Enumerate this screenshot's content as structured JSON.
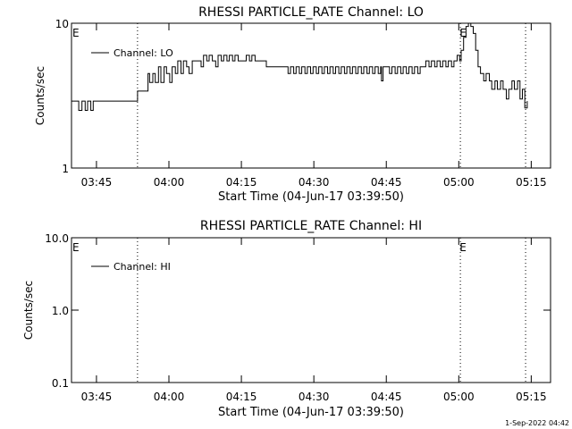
{
  "footer": {
    "timestamp": "1-Sep-2022 04:42"
  },
  "chart_data": [
    {
      "type": "line",
      "title": "RHESSI PARTICLE_RATE Channel: LO",
      "xlabel": "Start Time (04-Jun-17 03:39:50)",
      "ylabel": "Counts/sec",
      "y_scale": "log",
      "xlim": [
        "03:39:50",
        "05:19:00"
      ],
      "ylim": [
        1,
        10
      ],
      "x_ticks": [
        "03:45",
        "04:00",
        "04:15",
        "04:30",
        "04:45",
        "05:00",
        "05:15"
      ],
      "y_ticks": [
        "1",
        "10"
      ],
      "grid": false,
      "legend_position": "top-left",
      "event_flags": [
        {
          "time": "03:39:50",
          "label": "E"
        },
        {
          "time": "05:00:00",
          "label": "E"
        }
      ],
      "vertical_markers": [
        "03:53:30",
        "05:00:20",
        "05:13:50"
      ],
      "series": [
        {
          "name": "Channel: LO",
          "time": [
            "03:39:50",
            "03:40:50",
            "03:41:20",
            "03:42:00",
            "03:42:40",
            "03:43:10",
            "03:43:50",
            "03:44:20",
            "03:45:00",
            "03:53:30",
            "03:55:40",
            "03:56:00",
            "03:56:40",
            "03:57:10",
            "03:57:50",
            "03:58:20",
            "03:59:00",
            "03:59:30",
            "04:00:10",
            "04:00:40",
            "04:01:20",
            "04:01:50",
            "04:02:30",
            "04:03:00",
            "04:03:40",
            "04:04:10",
            "04:04:50",
            "04:05:20",
            "04:06:00",
            "04:06:40",
            "04:07:10",
            "04:07:50",
            "04:08:20",
            "04:09:00",
            "04:09:40",
            "04:10:10",
            "04:10:50",
            "04:11:20",
            "04:12:00",
            "04:12:30",
            "04:13:10",
            "04:13:40",
            "04:14:20",
            "04:14:50",
            "04:15:30",
            "04:16:00",
            "04:16:40",
            "04:17:10",
            "04:17:50",
            "04:18:20",
            "04:19:00",
            "04:19:30",
            "04:20:10",
            "04:20:40",
            "04:21:20",
            "04:21:50",
            "04:22:30",
            "04:23:00",
            "04:24:00",
            "04:24:40",
            "04:25:10",
            "04:25:50",
            "04:26:20",
            "04:27:00",
            "04:27:30",
            "04:28:10",
            "04:28:40",
            "04:29:20",
            "04:29:50",
            "04:30:30",
            "04:31:00",
            "04:31:40",
            "04:32:10",
            "04:32:50",
            "04:33:20",
            "04:34:00",
            "04:34:30",
            "04:35:10",
            "04:35:40",
            "04:36:20",
            "04:36:50",
            "04:37:30",
            "04:38:00",
            "04:38:40",
            "04:39:10",
            "04:39:50",
            "04:40:20",
            "04:41:00",
            "04:41:30",
            "04:42:10",
            "04:42:40",
            "04:43:20",
            "04:43:50",
            "04:44:00",
            "04:44:20",
            "04:45:00",
            "04:45:40",
            "04:46:10",
            "04:46:50",
            "04:47:20",
            "04:48:00",
            "04:48:30",
            "04:49:10",
            "04:49:40",
            "04:50:20",
            "04:50:50",
            "04:51:30",
            "04:52:00",
            "04:52:40",
            "04:53:10",
            "04:53:50",
            "04:54:20",
            "04:55:00",
            "04:55:30",
            "04:56:10",
            "04:56:40",
            "04:57:20",
            "04:57:50",
            "04:58:30",
            "04:59:00",
            "04:59:40",
            "05:00:10",
            "05:00:30",
            "05:01:00",
            "05:01:30",
            "05:02:00",
            "05:02:30",
            "05:03:00",
            "05:03:30",
            "05:04:00",
            "05:04:30",
            "05:05:10",
            "05:05:40",
            "05:06:20",
            "05:06:50",
            "05:07:30",
            "05:08:00",
            "05:08:40",
            "05:09:10",
            "05:09:50",
            "05:10:20",
            "05:11:00",
            "05:11:30",
            "05:12:10",
            "05:12:40",
            "05:13:10",
            "05:13:40",
            "05:14:10"
          ],
          "counts_per_sec": [
            2.9,
            2.9,
            2.5,
            2.9,
            2.5,
            2.9,
            2.5,
            2.9,
            2.9,
            3.4,
            4.5,
            3.9,
            4.5,
            3.9,
            5.0,
            3.9,
            5.0,
            4.5,
            3.9,
            5.0,
            4.5,
            5.5,
            4.5,
            5.5,
            5.0,
            4.5,
            5.5,
            5.5,
            5.5,
            5.0,
            6.0,
            5.5,
            6.0,
            5.5,
            5.0,
            6.0,
            5.5,
            6.0,
            5.5,
            6.0,
            5.5,
            6.0,
            5.5,
            5.5,
            5.5,
            6.0,
            5.5,
            6.0,
            5.5,
            5.5,
            5.5,
            5.5,
            5.0,
            5.0,
            5.0,
            5.0,
            5.0,
            5.0,
            5.0,
            4.5,
            5.0,
            4.5,
            5.0,
            4.5,
            5.0,
            4.5,
            5.0,
            4.5,
            5.0,
            4.5,
            5.0,
            4.5,
            5.0,
            4.5,
            5.0,
            4.5,
            5.0,
            4.5,
            5.0,
            4.5,
            5.0,
            4.5,
            5.0,
            4.5,
            5.0,
            4.5,
            5.0,
            4.5,
            5.0,
            4.5,
            5.0,
            4.5,
            5.0,
            4.0,
            5.0,
            5.0,
            4.5,
            5.0,
            4.5,
            5.0,
            4.5,
            5.0,
            4.5,
            5.0,
            4.5,
            5.0,
            4.5,
            5.0,
            5.0,
            5.5,
            5.0,
            5.5,
            5.0,
            5.5,
            5.0,
            5.5,
            5.0,
            5.5,
            5.0,
            5.5,
            6.0,
            5.5,
            6.5,
            8.0,
            9.5,
            10.0,
            9.5,
            8.5,
            6.5,
            5.0,
            4.5,
            4.0,
            4.5,
            4.0,
            3.5,
            4.0,
            3.5,
            4.0,
            3.5,
            3.0,
            3.5,
            4.0,
            3.5,
            4.0,
            3.0,
            3.5,
            2.6,
            2.9
          ]
        }
      ]
    },
    {
      "type": "line",
      "title": "RHESSI PARTICLE_RATE Channel: HI",
      "xlabel": "Start Time (04-Jun-17 03:39:50)",
      "ylabel": "Counts/sec",
      "y_scale": "log",
      "xlim": [
        "03:39:50",
        "05:19:00"
      ],
      "ylim": [
        0.1,
        10.0
      ],
      "x_ticks": [
        "03:45",
        "04:00",
        "04:15",
        "04:30",
        "04:45",
        "05:00",
        "05:15"
      ],
      "y_ticks": [
        "0.1",
        "1.0",
        "10.0"
      ],
      "grid": false,
      "legend_position": "top-left",
      "event_flags": [
        {
          "time": "03:39:50",
          "label": "E"
        },
        {
          "time": "05:00:00",
          "label": "E"
        }
      ],
      "vertical_markers": [
        "03:53:30",
        "05:00:20",
        "05:13:50"
      ],
      "series": [
        {
          "name": "Channel: HI",
          "time": [],
          "counts_per_sec": []
        }
      ]
    }
  ]
}
